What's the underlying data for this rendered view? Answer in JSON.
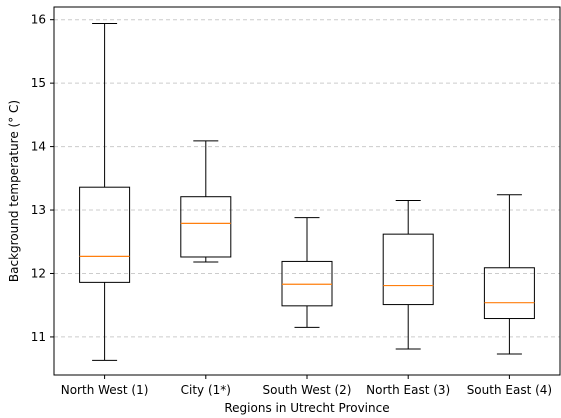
{
  "chart_data": {
    "type": "box",
    "title": "",
    "xlabel": "Regions in Utrecht Province",
    "ylabel": "Background temperature ($^\\circ$C)",
    "ylabel_display": "Background temperature (° C)",
    "ylim": [
      10.4,
      16.2
    ],
    "yticks": [
      11,
      12,
      13,
      14,
      15,
      16
    ],
    "grid": {
      "y": true,
      "style": "dashed"
    },
    "colors": {
      "box": "#000000",
      "median": "#ff7f0e",
      "grid": "#cccccc"
    },
    "categories": [
      "North West (1)",
      "City (1*)",
      "South West (2)",
      "North East (3)",
      "South East (4)"
    ],
    "boxes": [
      {
        "label": "North West (1)",
        "whislo": 10.63,
        "q1": 11.86,
        "med": 12.27,
        "q3": 13.36,
        "whishi": 15.94
      },
      {
        "label": "City (1*)",
        "whislo": 12.18,
        "q1": 12.26,
        "med": 12.79,
        "q3": 13.21,
        "whishi": 14.09
      },
      {
        "label": "South West (2)",
        "whislo": 11.15,
        "q1": 11.49,
        "med": 11.83,
        "q3": 12.19,
        "whishi": 12.88
      },
      {
        "label": "North East (3)",
        "whislo": 10.81,
        "q1": 11.51,
        "med": 11.81,
        "q3": 12.62,
        "whishi": 13.15
      },
      {
        "label": "South East (4)",
        "whislo": 10.73,
        "q1": 11.29,
        "med": 11.54,
        "q3": 12.09,
        "whishi": 13.24
      }
    ]
  }
}
